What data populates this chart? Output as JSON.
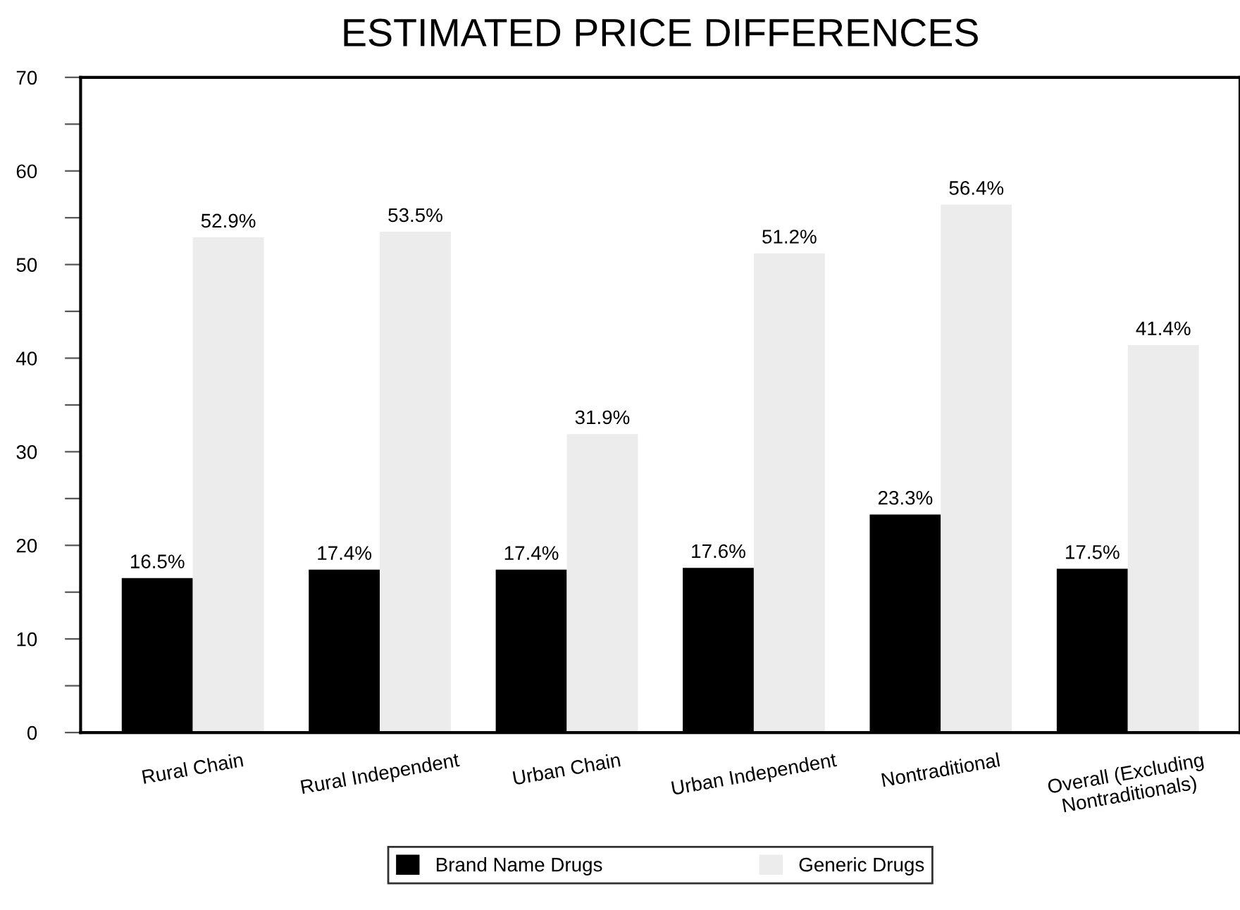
{
  "chart_data": {
    "type": "bar",
    "title": "ESTIMATED PRICE DIFFERENCES",
    "categories": [
      "Rural Chain",
      "Rural Independent",
      "Urban Chain",
      "Urban Independent",
      "Nontraditional",
      "Overall (Excluding\nNontraditionals)"
    ],
    "series": [
      {
        "name": "Brand Name Drugs",
        "color": "#000000",
        "values": [
          16.5,
          17.4,
          17.4,
          17.6,
          23.3,
          17.5
        ],
        "value_labels": [
          "16.5%",
          "17.4%",
          "17.4%",
          "17.6%",
          "23.3%",
          "17.5%"
        ]
      },
      {
        "name": "Generic Drugs",
        "color": "#ececec",
        "values": [
          52.9,
          53.5,
          31.9,
          51.2,
          56.4,
          41.4
        ],
        "value_labels": [
          "52.9%",
          "53.5%",
          "31.9%",
          "51.2%",
          "56.4%",
          "41.4%"
        ]
      }
    ],
    "ylim": [
      0,
      70
    ],
    "yticks": [
      0,
      {
        "value": 5,
        "label": null
      },
      10,
      {
        "value": 15,
        "label": null
      },
      20,
      {
        "value": 25,
        "label": null
      },
      30,
      {
        "value": 35,
        "label": null
      },
      40,
      {
        "value": 45,
        "label": null
      },
      50,
      {
        "value": 55,
        "label": null
      },
      60,
      {
        "value": 65,
        "label": null
      },
      70
    ],
    "grid": false,
    "legend": "bottom"
  }
}
